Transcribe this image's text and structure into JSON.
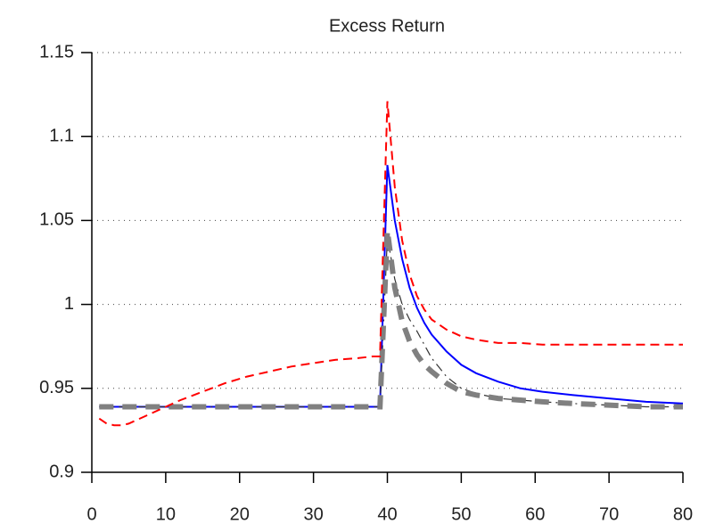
{
  "chart_data": {
    "type": "line",
    "title": "Excess Return",
    "x": [
      1,
      2,
      3,
      4,
      5,
      6,
      8,
      10,
      12,
      15,
      18,
      21,
      24,
      27,
      30,
      33,
      36,
      38,
      39,
      40,
      41,
      42,
      43,
      44,
      45,
      46,
      48,
      50,
      52,
      55,
      58,
      61,
      65,
      70,
      75,
      80
    ],
    "series": [
      {
        "color": "#0000ff",
        "style": "solid",
        "values": [
          0.939,
          0.939,
          0.939,
          0.939,
          0.939,
          0.939,
          0.939,
          0.939,
          0.939,
          0.939,
          0.939,
          0.939,
          0.939,
          0.939,
          0.939,
          0.939,
          0.939,
          0.939,
          0.939,
          1.083,
          1.05,
          1.027,
          1.01,
          0.998,
          0.989,
          0.982,
          0.972,
          0.964,
          0.959,
          0.954,
          0.95,
          0.948,
          0.946,
          0.944,
          0.942,
          0.941
        ]
      },
      {
        "color": "#333333",
        "style": "dash-dot",
        "values": [
          0.939,
          0.939,
          0.939,
          0.939,
          0.939,
          0.939,
          0.939,
          0.939,
          0.939,
          0.939,
          0.939,
          0.939,
          0.939,
          0.939,
          0.939,
          0.939,
          0.939,
          0.939,
          0.939,
          1.04,
          1.015,
          1.0,
          0.991,
          0.984,
          0.976,
          0.968,
          0.957,
          0.95,
          0.947,
          0.944,
          0.943,
          0.942,
          0.941,
          0.94,
          0.939,
          0.939
        ]
      },
      {
        "color": "#808080",
        "style": "thick-dashed",
        "values": [
          0.939,
          0.939,
          0.939,
          0.939,
          0.939,
          0.939,
          0.939,
          0.939,
          0.939,
          0.939,
          0.939,
          0.939,
          0.939,
          0.939,
          0.939,
          0.939,
          0.939,
          0.939,
          0.939,
          1.044,
          1.01,
          0.99,
          0.978,
          0.97,
          0.964,
          0.96,
          0.953,
          0.948,
          0.946,
          0.944,
          0.943,
          0.942,
          0.941,
          0.94,
          0.939,
          0.939
        ]
      },
      {
        "color": "#ff0000",
        "style": "dashed",
        "values": [
          0.932,
          0.929,
          0.928,
          0.928,
          0.929,
          0.931,
          0.935,
          0.939,
          0.943,
          0.948,
          0.953,
          0.957,
          0.96,
          0.963,
          0.965,
          0.967,
          0.968,
          0.969,
          0.969,
          1.121,
          1.07,
          1.038,
          1.018,
          1.005,
          0.997,
          0.991,
          0.985,
          0.981,
          0.979,
          0.977,
          0.977,
          0.976,
          0.976,
          0.976,
          0.976,
          0.976
        ]
      }
    ],
    "xlim": [
      0,
      80
    ],
    "xticks": [
      0,
      10,
      20,
      30,
      40,
      50,
      60,
      70,
      80
    ],
    "ylim": [
      0.9,
      1.15
    ],
    "yticks": [
      0.9,
      0.95,
      1,
      1.05,
      1.1,
      1.15
    ],
    "grid": true
  }
}
